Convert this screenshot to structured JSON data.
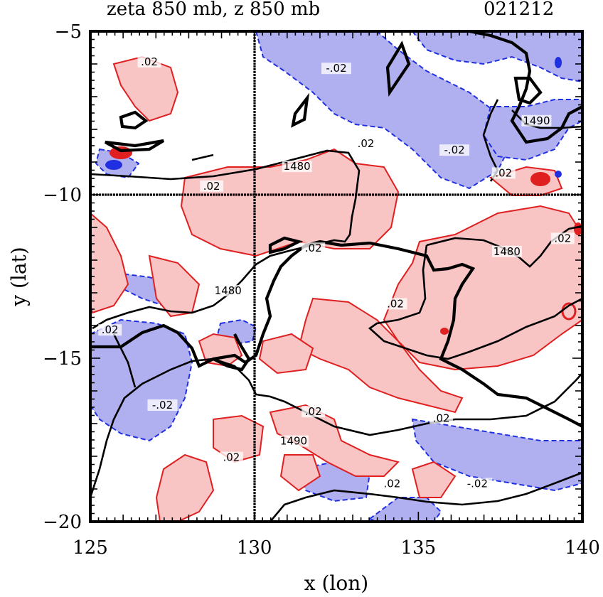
{
  "chart_data": {
    "type": "contour-map",
    "title_left": "zeta 850 mb, z 850 mb",
    "title_right": "021212",
    "xlabel": "x (lon)",
    "ylabel": "y (lat)",
    "xlim": [
      125,
      140
    ],
    "ylim": [
      -20,
      -5
    ],
    "xticks": [
      "125",
      "130",
      "135",
      "140"
    ],
    "yticks": [
      "−5",
      "−10",
      "−15",
      "−20"
    ],
    "reference_lines": {
      "lon": 130,
      "lat": -10
    },
    "fields": [
      {
        "name": "zeta 850 mb",
        "contour_interval": 0.02,
        "positive_color": "#e02020",
        "positive_fill": "#f8c4c4",
        "negative_color": "#2030e0",
        "negative_fill": "#b0b0f0"
      },
      {
        "name": "z 850 mb",
        "color": "#000000",
        "levels": [
          1480,
          1490
        ]
      }
    ],
    "contour_labels": [
      {
        "text": ".02",
        "lon": 126.8,
        "lat": -6.0
      },
      {
        "text": "-.02",
        "lon": 132.5,
        "lat": -6.2
      },
      {
        "text": ".02",
        "lon": 133.4,
        "lat": -8.5
      },
      {
        "text": "1480",
        "lon": 131.3,
        "lat": -9.2
      },
      {
        "text": ".02",
        "lon": 128.7,
        "lat": -9.8
      },
      {
        "text": "-.02",
        "lon": 136.1,
        "lat": -8.7
      },
      {
        "text": ".02",
        "lon": 137.6,
        "lat": -9.4
      },
      {
        "text": "1490",
        "lon": 138.6,
        "lat": -7.8
      },
      {
        "text": ".02",
        "lon": 131.8,
        "lat": -11.7
      },
      {
        "text": "1480",
        "lon": 137.7,
        "lat": -11.8
      },
      {
        "text": ".02",
        "lon": 139.4,
        "lat": -11.4
      },
      {
        "text": "1480",
        "lon": 129.2,
        "lat": -13.0
      },
      {
        "text": ".02",
        "lon": 134.3,
        "lat": -13.4
      },
      {
        "text": ".02",
        "lon": 125.6,
        "lat": -14.2
      },
      {
        "text": "-.02",
        "lon": 127.2,
        "lat": -16.5
      },
      {
        "text": ".02",
        "lon": 131.8,
        "lat": -16.7
      },
      {
        "text": ".02",
        "lon": 135.7,
        "lat": -16.9
      },
      {
        "text": "1490",
        "lon": 131.2,
        "lat": -17.6
      },
      {
        "text": ".02",
        "lon": 129.3,
        "lat": -18.1
      },
      {
        "text": ".02",
        "lon": 134.2,
        "lat": -18.9
      },
      {
        "text": "-.02",
        "lon": 136.8,
        "lat": -18.9
      }
    ]
  }
}
